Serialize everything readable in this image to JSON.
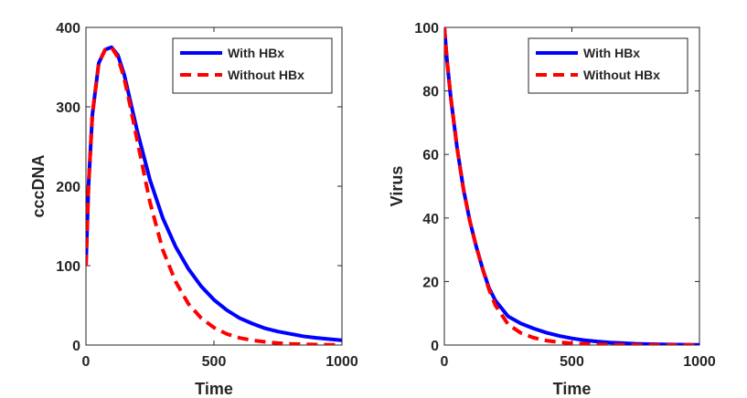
{
  "chart_data": [
    {
      "type": "line",
      "title": "",
      "xlabel": "Time",
      "ylabel": "cccDNA",
      "xlim": [
        0,
        1000
      ],
      "ylim": [
        0,
        400
      ],
      "xticks": [
        0,
        500,
        1000
      ],
      "yticks": [
        0,
        100,
        200,
        300,
        400
      ],
      "grid": false,
      "legend_position": "top-right",
      "series": [
        {
          "name": "With HBx",
          "color": "#0000ff",
          "style": "solid",
          "x": [
            0,
            10,
            25,
            50,
            75,
            100,
            125,
            150,
            175,
            200,
            250,
            300,
            350,
            400,
            450,
            500,
            550,
            600,
            650,
            700,
            750,
            800,
            850,
            900,
            950,
            1000
          ],
          "y": [
            100,
            200,
            290,
            355,
            372,
            375,
            365,
            340,
            305,
            270,
            208,
            160,
            124,
            96,
            74,
            57,
            44,
            34,
            27,
            21,
            17,
            14,
            11,
            9,
            7.5,
            6
          ]
        },
        {
          "name": "Without HBx",
          "color": "#ff0000",
          "style": "dashed",
          "x": [
            0,
            10,
            25,
            50,
            75,
            100,
            125,
            150,
            175,
            200,
            250,
            300,
            350,
            400,
            450,
            500,
            550,
            600,
            650,
            700,
            750,
            800,
            850,
            900,
            950,
            1000
          ],
          "y": [
            100,
            200,
            290,
            355,
            372,
            375,
            362,
            335,
            298,
            258,
            180,
            120,
            80,
            52,
            34,
            22,
            14,
            9,
            6,
            4,
            2.5,
            1.5,
            1,
            0.5,
            0.3,
            0.2
          ]
        }
      ]
    },
    {
      "type": "line",
      "title": "",
      "xlabel": "Time",
      "ylabel": "Virus",
      "xlim": [
        0,
        1000
      ],
      "ylim": [
        0,
        100
      ],
      "xticks": [
        0,
        500,
        1000
      ],
      "yticks": [
        0,
        20,
        40,
        60,
        80,
        100
      ],
      "grid": false,
      "legend_position": "top-right",
      "series": [
        {
          "name": "With HBx",
          "color": "#0000ff",
          "style": "solid",
          "x": [
            0,
            10,
            25,
            50,
            75,
            100,
            125,
            150,
            175,
            200,
            250,
            300,
            350,
            400,
            450,
            500,
            550,
            600,
            650,
            700,
            750,
            800,
            850,
            900,
            950,
            1000
          ],
          "y": [
            100,
            90,
            78,
            62,
            49,
            39,
            31,
            24,
            18,
            14,
            9,
            6.8,
            5.2,
            3.9,
            2.9,
            2.1,
            1.5,
            1.1,
            0.8,
            0.6,
            0.4,
            0.3,
            0.2,
            0.15,
            0.1,
            0.08
          ]
        },
        {
          "name": "Without HBx",
          "color": "#ff0000",
          "style": "dashed",
          "x": [
            0,
            10,
            25,
            50,
            75,
            100,
            125,
            150,
            175,
            200,
            250,
            300,
            350,
            400,
            450,
            500,
            550,
            600,
            650,
            700,
            750,
            800,
            850,
            900,
            950,
            1000
          ],
          "y": [
            100,
            90,
            78,
            62,
            49,
            39,
            31,
            24,
            17.5,
            12.5,
            6.5,
            3.8,
            2.3,
            1.4,
            0.9,
            0.55,
            0.35,
            0.2,
            0.12,
            0.08,
            0.05,
            0.03,
            0.02,
            0.01,
            0.01,
            0.01
          ]
        }
      ]
    }
  ]
}
